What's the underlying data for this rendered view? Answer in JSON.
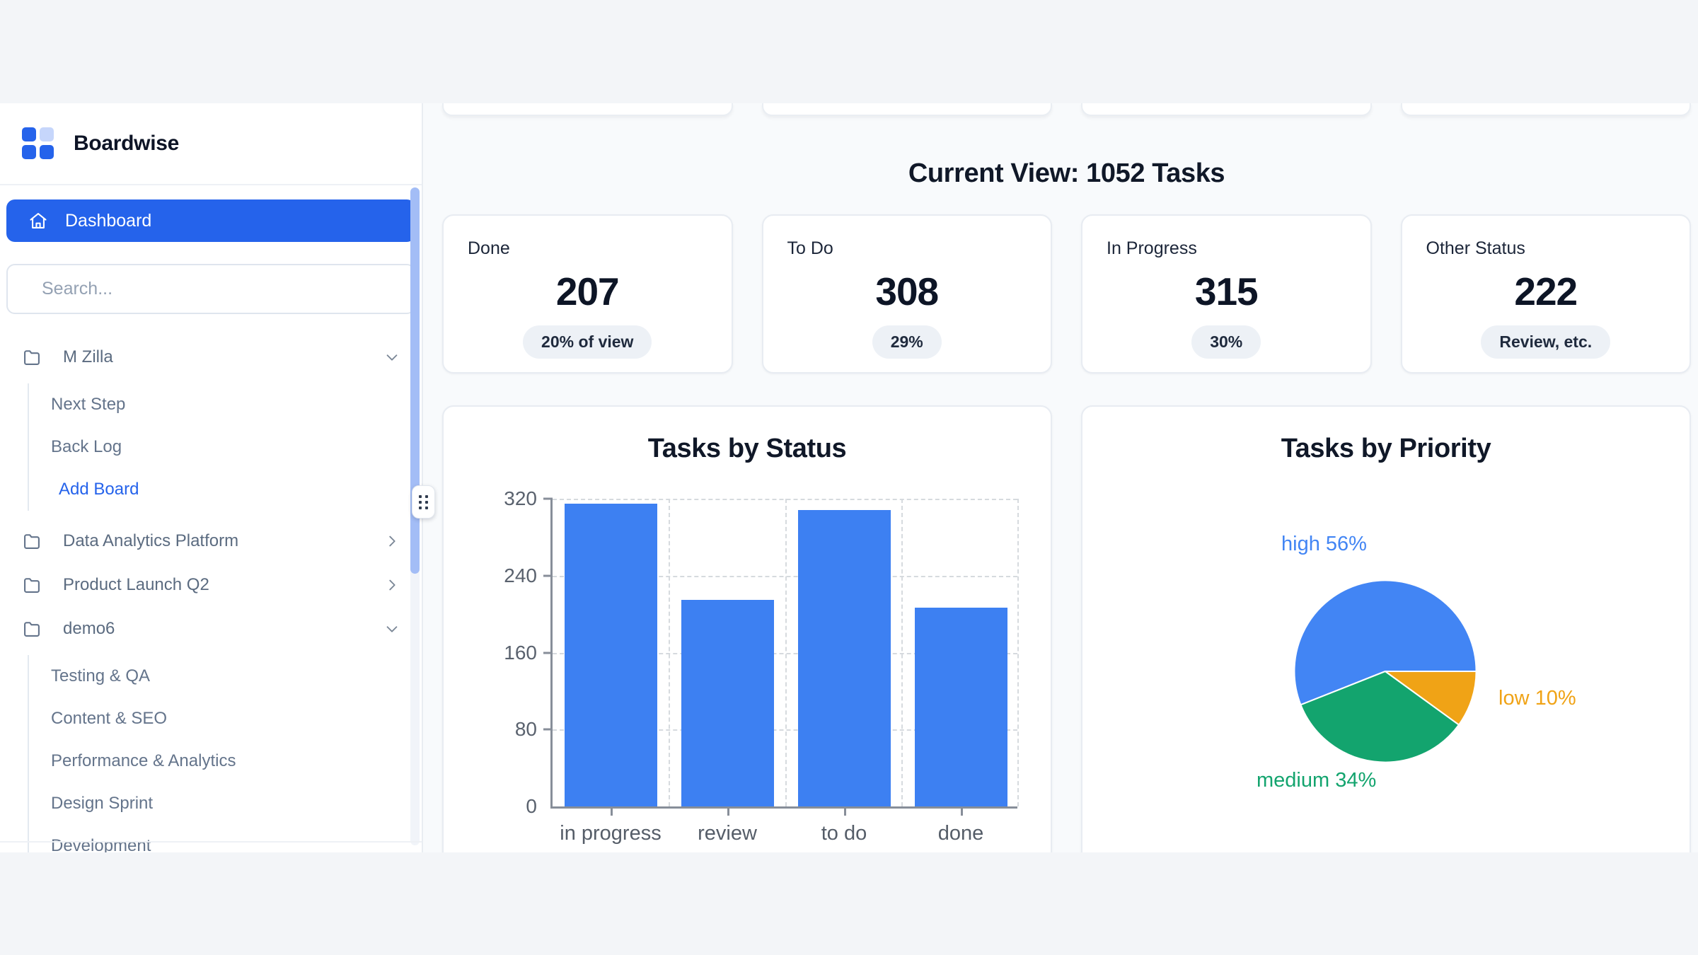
{
  "brand": {
    "name": "Boardwise"
  },
  "icons": {
    "logo": "four-squares-grid",
    "dashboard": "home",
    "project": "folder",
    "expand_open": "chevron-down",
    "expand_closed": "chevron-right",
    "sidebar_resize": "grip-dots"
  },
  "colors": {
    "accent": "#2563eb",
    "sidebar_scroll_thumb": "#a3bdf6",
    "badge_bg": "#edf1f6",
    "main_bg": "#f8fafc",
    "page_bg": "#f3f5f8"
  },
  "sidebar": {
    "dashboard_label": "Dashboard",
    "search_placeholder": "Search...",
    "projects": [
      {
        "label": "M Zilla",
        "expanded": true,
        "children": [
          "Next Step",
          "Back Log"
        ],
        "action_label": "Add Board"
      },
      {
        "label": "Data Analytics Platform",
        "expanded": false
      },
      {
        "label": "Product Launch Q2",
        "expanded": false
      },
      {
        "label": "demo6",
        "expanded": true,
        "children": [
          "Testing & QA",
          "Content & SEO",
          "Performance & Analytics",
          "Design Sprint",
          "Development"
        ]
      }
    ]
  },
  "header": {
    "title": "Current View: 1052 Tasks"
  },
  "stats": [
    {
      "label": "Done",
      "value": "207",
      "badge": "20% of view"
    },
    {
      "label": "To Do",
      "value": "308",
      "badge": "29%"
    },
    {
      "label": "In Progress",
      "value": "315",
      "badge": "30%"
    },
    {
      "label": "Other Status",
      "value": "222",
      "badge": "Review, etc."
    }
  ],
  "chart_data": [
    {
      "type": "bar",
      "title": "Tasks by Status",
      "categories": [
        "in progress",
        "review",
        "to do",
        "done"
      ],
      "values": [
        315,
        215,
        308,
        207
      ],
      "xlabel": "",
      "ylabel": "",
      "ylim": [
        0,
        320
      ],
      "yticks": [
        0,
        80,
        160,
        240,
        320
      ],
      "bar_color": "#3d80f2",
      "grid": "dashed"
    },
    {
      "type": "pie",
      "title": "Tasks by Priority",
      "slices": [
        {
          "label": "high",
          "pct": 56,
          "color": "#4285f4",
          "label_text": "high 56%"
        },
        {
          "label": "medium",
          "pct": 34,
          "color": "#13a46e",
          "label_text": "medium 34%"
        },
        {
          "label": "low",
          "pct": 10,
          "color": "#f0a316",
          "label_text": "low 10%"
        }
      ]
    }
  ]
}
